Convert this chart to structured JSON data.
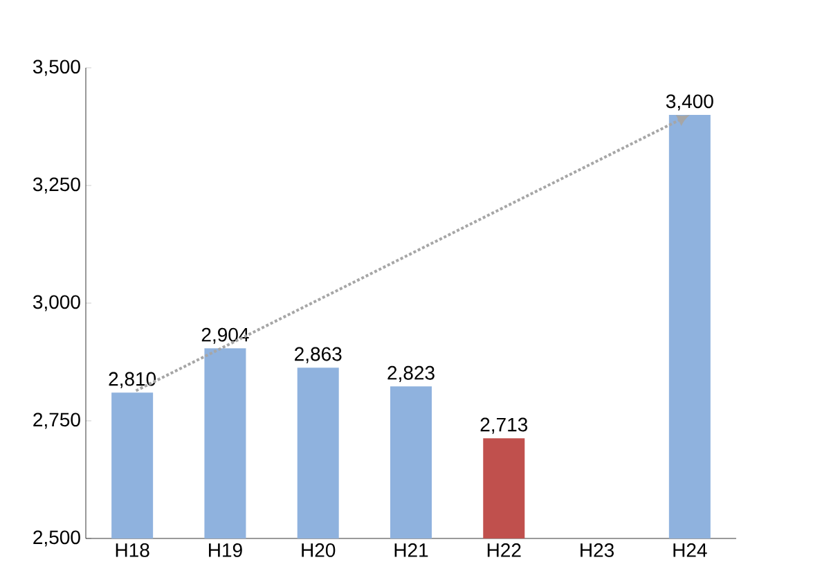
{
  "chart_data": {
    "type": "bar",
    "categories": [
      "H18",
      "H19",
      "H20",
      "H21",
      "H22",
      "H23",
      "H24"
    ],
    "series": [
      {
        "values": [
          2810,
          2904,
          2863,
          2823,
          2713,
          null,
          3400
        ],
        "colors": [
          "#8fb2de",
          "#8fb2de",
          "#8fb2de",
          "#8fb2de",
          "#c0504d",
          "#8fb2de",
          "#8fb2de"
        ],
        "value_labels": [
          "2,810",
          "2,904",
          "2,863",
          "2,823",
          "2,713",
          null,
          "3,400"
        ]
      }
    ],
    "ylim": [
      2500,
      3500
    ],
    "yticks": [
      {
        "value": 2500,
        "label": "2,500"
      },
      {
        "value": 2750,
        "label": "2,750"
      },
      {
        "value": 3000,
        "label": "3,000"
      },
      {
        "value": 3250,
        "label": "3,250"
      },
      {
        "value": 3500,
        "label": "3,500"
      }
    ],
    "grid": false
  }
}
